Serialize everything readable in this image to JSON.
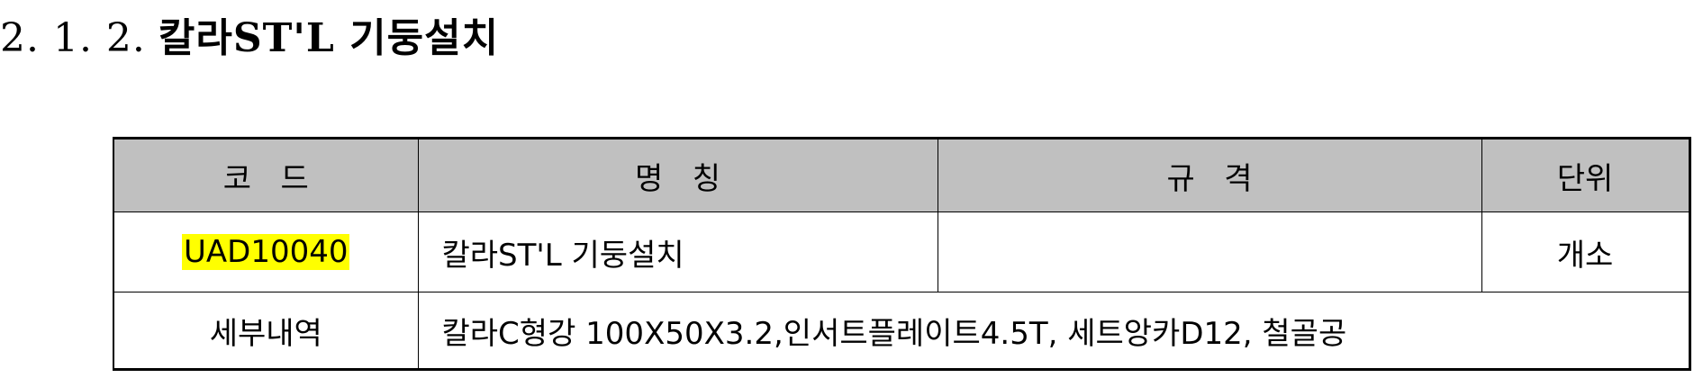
{
  "heading": {
    "number": "2. 1. 2.",
    "title": "칼라ST'L 기둥설치"
  },
  "table": {
    "headers": {
      "code": "코   드",
      "name": "명   칭",
      "spec": "규   격",
      "unit": "단위"
    },
    "row": {
      "code": "UAD10040",
      "name": "칼라ST'L 기둥설치",
      "spec": "",
      "unit": "개소"
    },
    "detail": {
      "label": "세부내역",
      "text": "칼라C형강 100X50X3.2,인서트플레이트4.5T, 세트앙카D12, 철골공"
    }
  },
  "colors": {
    "header_bg": "#c0c0c0",
    "highlight": "#ffff00"
  }
}
